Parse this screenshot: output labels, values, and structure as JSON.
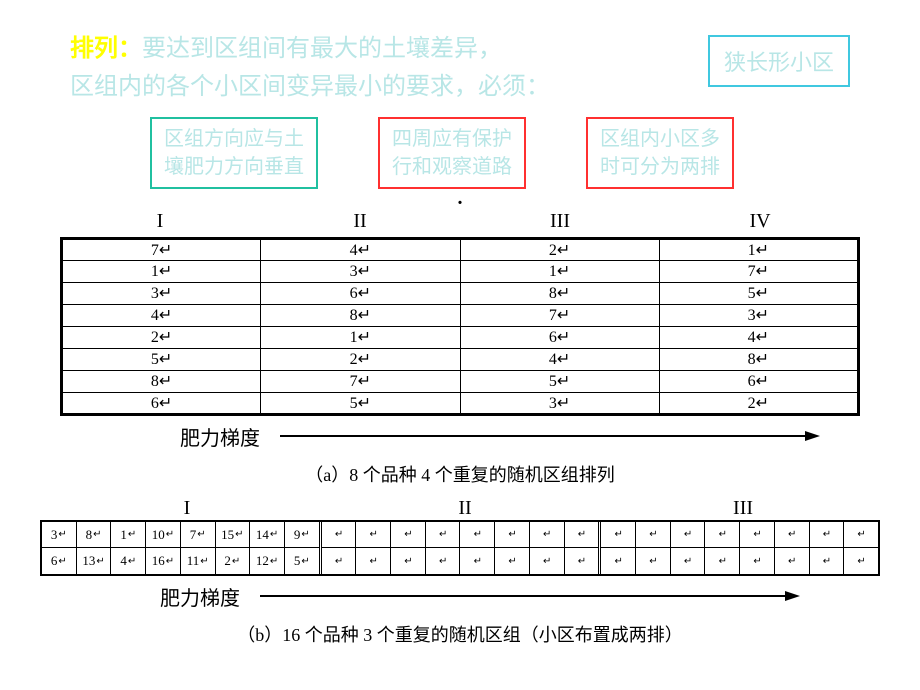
{
  "header": {
    "prefix": "排列：",
    "line1": "要达到区组间有最大的土壤差异，",
    "line2": "区组内的各个小区间变异最小的要求，必须：",
    "right_box": "狭长形小区",
    "prefix_color": "#ffff00",
    "text_color": "#b8e6e6"
  },
  "boxes": [
    {
      "line1": "区组方向应与土",
      "line2": "壤肥力方向垂直",
      "border_color": "#20c0a0"
    },
    {
      "line1": "四周应有保护",
      "line2": "行和观察道路",
      "border_color": "#ff3030"
    },
    {
      "line1": "区组内小区多",
      "line2": "时可分为两排",
      "border_color": "#ff3030"
    }
  ],
  "tableA": {
    "headers": [
      "I",
      "II",
      "III",
      "IV"
    ],
    "rows": [
      [
        "7↵",
        "4↵",
        "2↵",
        "1↵"
      ],
      [
        "1↵",
        "3↵",
        "1↵",
        "7↵"
      ],
      [
        "3↵",
        "6↵",
        "8↵",
        "5↵"
      ],
      [
        "4↵",
        "8↵",
        "7↵",
        "3↵"
      ],
      [
        "2↵",
        "1↵",
        "6↵",
        "4↵"
      ],
      [
        "5↵",
        "2↵",
        "4↵",
        "8↵"
      ],
      [
        "8↵",
        "7↵",
        "5↵",
        "6↵"
      ],
      [
        "6↵",
        "5↵",
        "3↵",
        "2↵"
      ]
    ]
  },
  "gradient_label": "肥力梯度",
  "captionA": "（a）8 个品种 4 个重复的随机区组排列",
  "tableB": {
    "headers": [
      "I",
      "II",
      "III"
    ],
    "row1_block1": [
      "3",
      "8",
      "1",
      "10",
      "7",
      "15",
      "14",
      "9"
    ],
    "row2_block1": [
      "6",
      "13",
      "4",
      "16",
      "11",
      "2",
      "12",
      "5"
    ],
    "empty_count": 8
  },
  "captionB": "（b）16 个品种 3 个重复的随机区组（小区布置成两排）",
  "arrow": {
    "color": "#000000",
    "length": 540
  }
}
